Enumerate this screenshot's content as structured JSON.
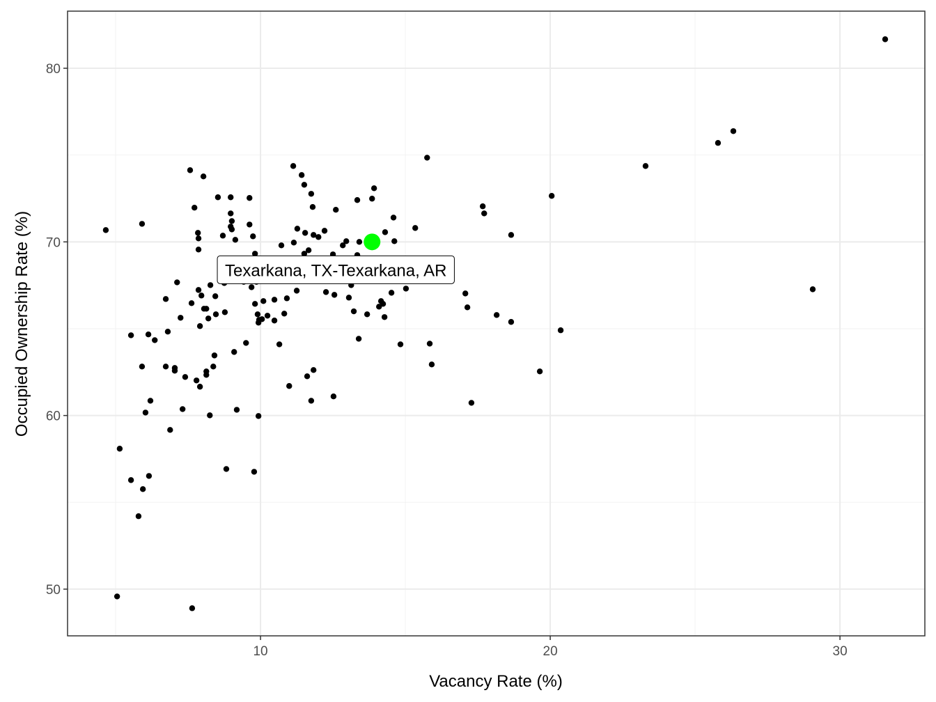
{
  "chart_data": {
    "type": "scatter",
    "title": "",
    "xlabel": "Vacancy Rate (%)",
    "ylabel": "Occupied Ownership Rate (%)",
    "xlim": [
      3.34,
      32.93
    ],
    "ylim": [
      47.31,
      83.29
    ],
    "xticks": [
      10,
      20,
      30
    ],
    "yticks": [
      50,
      60,
      70,
      80
    ],
    "xtick_labels": [
      "10",
      "20",
      "30"
    ],
    "ytick_labels": [
      "50",
      "60",
      "70",
      "80"
    ],
    "grid": true,
    "theme": "bw",
    "point_color": "#000000",
    "highlight_color": "#00ff00",
    "highlight": {
      "x": 13.85,
      "y": 70.0,
      "label": "Texarkana, TX-Texarkana, AR"
    },
    "points": [
      [
        4.66,
        70.68
      ],
      [
        5.05,
        49.58
      ],
      [
        5.14,
        58.09
      ],
      [
        5.53,
        64.62
      ],
      [
        5.53,
        56.28
      ],
      [
        5.79,
        54.2
      ],
      [
        5.91,
        71.04
      ],
      [
        5.91,
        62.82
      ],
      [
        5.94,
        55.76
      ],
      [
        6.03,
        60.17
      ],
      [
        6.13,
        64.67
      ],
      [
        6.15,
        56.52
      ],
      [
        6.2,
        60.85
      ],
      [
        6.35,
        64.34
      ],
      [
        6.73,
        66.71
      ],
      [
        6.73,
        62.82
      ],
      [
        6.8,
        64.83
      ],
      [
        6.88,
        59.17
      ],
      [
        7.04,
        62.58
      ],
      [
        7.04,
        62.74
      ],
      [
        7.12,
        67.67
      ],
      [
        7.24,
        65.63
      ],
      [
        7.31,
        60.37
      ],
      [
        7.4,
        62.22
      ],
      [
        7.57,
        74.13
      ],
      [
        7.62,
        66.47
      ],
      [
        7.64,
        48.9
      ],
      [
        7.72,
        71.97
      ],
      [
        7.79,
        62.02
      ],
      [
        7.84,
        70.52
      ],
      [
        7.86,
        70.2
      ],
      [
        7.86,
        69.56
      ],
      [
        7.86,
        67.23
      ],
      [
        7.91,
        65.15
      ],
      [
        7.91,
        61.66
      ],
      [
        7.96,
        66.91
      ],
      [
        8.03,
        73.77
      ],
      [
        8.05,
        66.15
      ],
      [
        8.13,
        66.15
      ],
      [
        8.13,
        62.54
      ],
      [
        8.13,
        62.34
      ],
      [
        8.2,
        65.59
      ],
      [
        8.25,
        60.01
      ],
      [
        8.27,
        67.51
      ],
      [
        8.37,
        62.82
      ],
      [
        8.41,
        63.46
      ],
      [
        8.44,
        66.87
      ],
      [
        8.46,
        65.83
      ],
      [
        8.53,
        72.57
      ],
      [
        8.7,
        70.36
      ],
      [
        8.75,
        67.63
      ],
      [
        8.77,
        65.95
      ],
      [
        8.82,
        56.92
      ],
      [
        8.97,
        72.57
      ],
      [
        8.97,
        71.64
      ],
      [
        8.97,
        70.88
      ],
      [
        9.01,
        71.2
      ],
      [
        9.01,
        70.72
      ],
      [
        9.09,
        63.66
      ],
      [
        9.13,
        70.12
      ],
      [
        9.18,
        60.33
      ],
      [
        9.5,
        64.18
      ],
      [
        9.62,
        72.53
      ],
      [
        9.62,
        71.0
      ],
      [
        9.69,
        67.39
      ],
      [
        9.74,
        70.32
      ],
      [
        9.78,
        56.76
      ],
      [
        9.81,
        66.43
      ],
      [
        9.9,
        65.83
      ],
      [
        9.93,
        59.97
      ],
      [
        9.93,
        65.35
      ],
      [
        9.95,
        65.51
      ],
      [
        10.05,
        65.55
      ],
      [
        10.1,
        66.59
      ],
      [
        10.24,
        65.75
      ],
      [
        10.48,
        66.67
      ],
      [
        10.48,
        65.47
      ],
      [
        10.65,
        64.1
      ],
      [
        10.72,
        69.8
      ],
      [
        10.82,
        65.87
      ],
      [
        10.91,
        66.75
      ],
      [
        10.99,
        61.7
      ],
      [
        11.13,
        74.37
      ],
      [
        11.15,
        69.96
      ],
      [
        11.25,
        67.19
      ],
      [
        11.27,
        70.76
      ],
      [
        11.42,
        73.85
      ],
      [
        11.51,
        73.29
      ],
      [
        11.54,
        70.52
      ],
      [
        11.61,
        62.26
      ],
      [
        11.66,
        69.52
      ],
      [
        11.75,
        72.77
      ],
      [
        11.75,
        60.85
      ],
      [
        11.8,
        72.01
      ],
      [
        11.83,
        62.62
      ],
      [
        11.83,
        70.4
      ],
      [
        12.0,
        70.28
      ],
      [
        12.21,
        70.64
      ],
      [
        12.26,
        67.11
      ],
      [
        12.52,
        61.1
      ],
      [
        12.55,
        66.95
      ],
      [
        12.6,
        71.85
      ],
      [
        12.84,
        69.8
      ],
      [
        12.96,
        70.04
      ],
      [
        13.05,
        66.79
      ],
      [
        13.13,
        67.51
      ],
      [
        13.22,
        66.0
      ],
      [
        13.34,
        72.41
      ],
      [
        13.39,
        64.42
      ],
      [
        13.41,
        70.0
      ],
      [
        13.68,
        65.83
      ],
      [
        13.85,
        72.49
      ],
      [
        13.92,
        73.09
      ],
      [
        14.09,
        66.27
      ],
      [
        14.16,
        66.59
      ],
      [
        14.23,
        66.43
      ],
      [
        14.28,
        65.67
      ],
      [
        14.3,
        70.56
      ],
      [
        14.52,
        67.07
      ],
      [
        14.59,
        71.4
      ],
      [
        14.62,
        70.04
      ],
      [
        14.83,
        64.1
      ],
      [
        15.02,
        67.31
      ],
      [
        15.34,
        70.8
      ],
      [
        15.75,
        74.85
      ],
      [
        15.84,
        64.14
      ],
      [
        15.91,
        62.94
      ],
      [
        17.07,
        67.03
      ],
      [
        17.14,
        66.23
      ],
      [
        17.28,
        60.73
      ],
      [
        17.67,
        72.05
      ],
      [
        17.72,
        71.64
      ],
      [
        18.15,
        65.79
      ],
      [
        18.65,
        65.39
      ],
      [
        18.65,
        70.4
      ],
      [
        19.64,
        62.54
      ],
      [
        20.05,
        72.65
      ],
      [
        20.36,
        64.91
      ],
      [
        23.29,
        74.37
      ],
      [
        25.79,
        75.7
      ],
      [
        26.32,
        76.38
      ],
      [
        29.06,
        67.27
      ],
      [
        31.56,
        81.67
      ],
      [
        9.42,
        67.7
      ],
      [
        9.86,
        67.7
      ],
      [
        13.34,
        69.24
      ],
      [
        12.5,
        69.28
      ],
      [
        11.51,
        69.32
      ],
      [
        9.81,
        69.32
      ]
    ]
  }
}
